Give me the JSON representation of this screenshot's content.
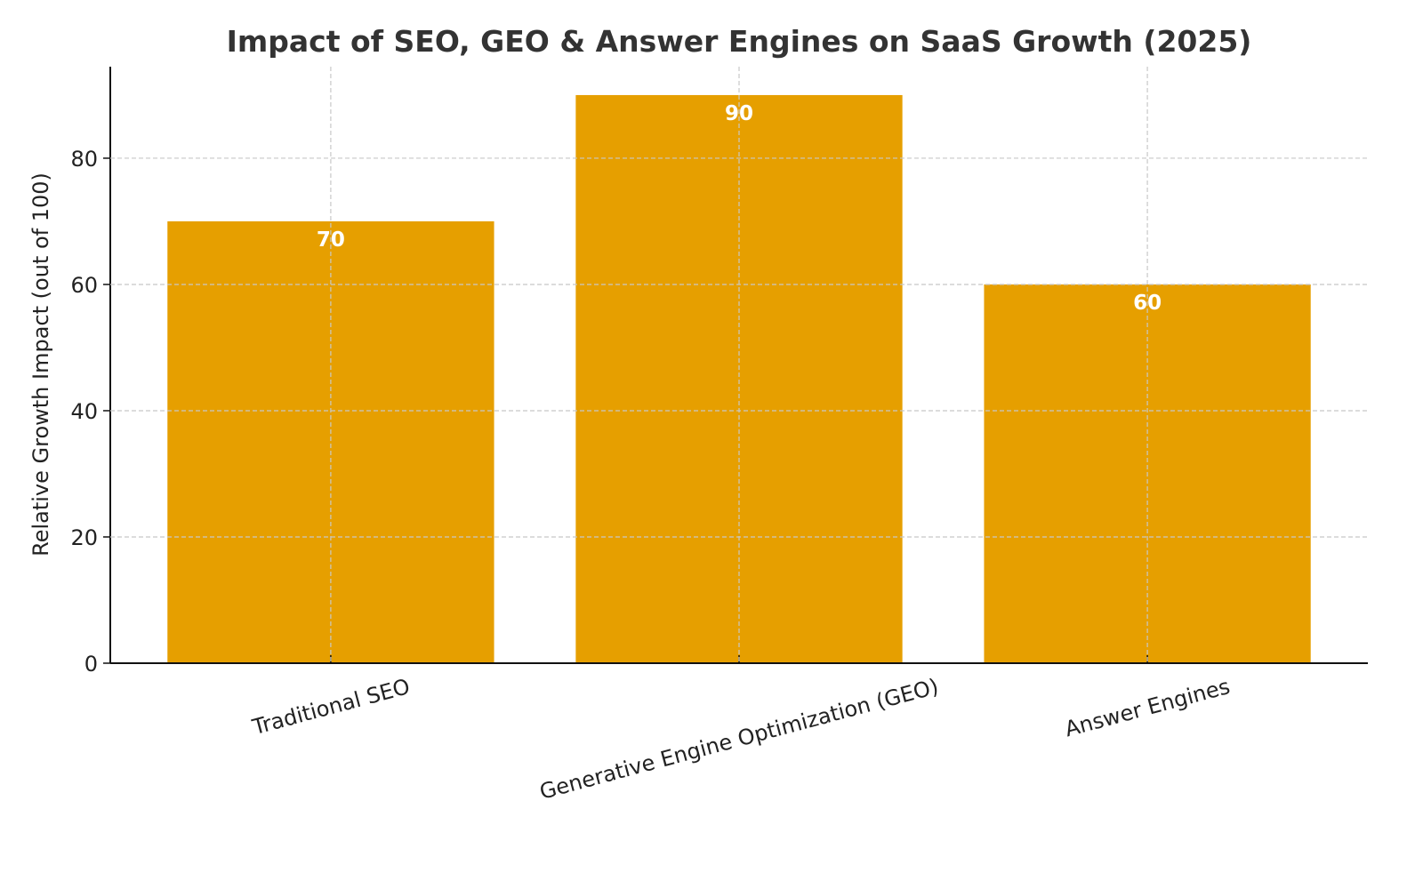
{
  "chart_data": {
    "type": "bar",
    "title": "Impact of SEO, GEO & Answer Engines on SaaS Growth (2025)",
    "xlabel": "",
    "ylabel": "Relative Growth Impact (out of 100)",
    "categories": [
      "Traditional SEO",
      "Generative Engine Optimization (GEO)",
      "Answer Engines"
    ],
    "values": [
      70,
      90,
      60
    ],
    "data_labels": [
      "70",
      "90",
      "60"
    ],
    "ylim": [
      0,
      94.5
    ],
    "yticks": [
      0,
      20,
      40,
      60,
      80
    ],
    "ytick_labels": [
      "0",
      "20",
      "40",
      "60",
      "80"
    ],
    "grid": true,
    "bar_color": "#E69F00",
    "xtick_rotation": 15
  }
}
